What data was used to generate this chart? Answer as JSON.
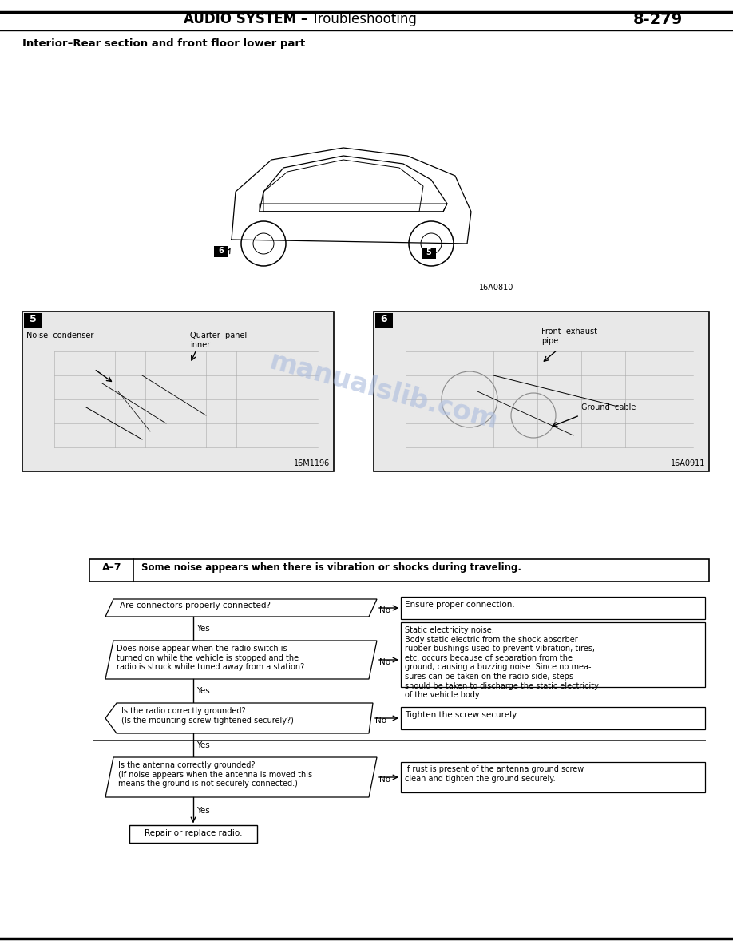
{
  "page_number": "8-279",
  "header_bold": "AUDIO SYSTEM – ",
  "header_normal": "Troubleshooting",
  "section_title": "Interior–Rear section and front floor lower part",
  "car_diagram_ref": "16A0810",
  "photo5_ref": "16M1196",
  "photo6_ref": "16A0911",
  "flowchart_header_id": "A–7",
  "flowchart_header_text": "Some noise appears when there is vibration or shocks during traveling.",
  "q1_text": "Are connectors properly connected?",
  "q1_answer": "Ensure proper connection.",
  "q2_text": "Does noise appear when the radio switch is\nturned on while the vehicle is stopped and the\nradio is struck while tuned away from a station?",
  "q2_answer": "Static electricity noise:\nBody static electric from the shock absorber\nrubber bushings used to prevent vibration, tires,\netc. occurs because of separation from the\nground, causing a buzzing noise. Since no mea-\nsures can be taken on the radio side, steps\nshould be taken to discharge the static electricity\nof the vehicle body.",
  "q3_text": "Is the radio correctly grounded?\n(Is the mounting screw tightened securely?)",
  "q3_answer": "Tighten the screw securely.",
  "q4_text": "Is the antenna correctly grounded?\n(If noise appears when the antenna is moved this\nmeans the ground is not securely connected.)",
  "q4_answer": "If rust is present of the antenna ground screw\nclean and tighten the ground securely.",
  "final_box": "Repair or replace radio.",
  "watermark": "manualslib.com",
  "watermark_color": "#aabbdd",
  "bg_color": "#ffffff"
}
